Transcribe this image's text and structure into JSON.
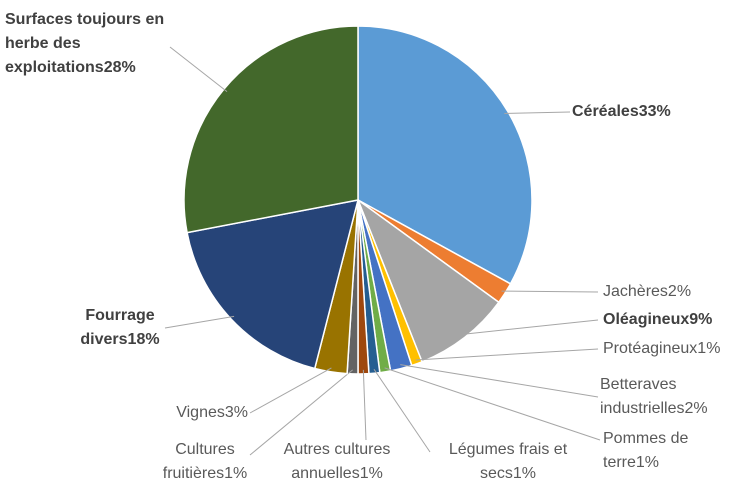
{
  "chart_data": {
    "type": "pie",
    "categories": [
      "Céréales",
      "Jachères",
      "Oléagineux",
      "Protéagineux",
      "Betteraves industrielles",
      "Pommes de terre",
      "Légumes frais et secs",
      "Autres cultures annuelles",
      "Cultures fruitières",
      "Vignes",
      "Fourrage divers",
      "Surfaces toujours en herbe des exploitations"
    ],
    "values": [
      33,
      2,
      9,
      1,
      2,
      1,
      1,
      1,
      1,
      3,
      18,
      28
    ],
    "value_labels": [
      "33%",
      "2%",
      "9%",
      "1%",
      "2%",
      "1%",
      "1%",
      "1%",
      "1%",
      "3%",
      "18%",
      "28%"
    ],
    "colors": [
      "#5b9bd5",
      "#ed7d31",
      "#a5a5a5",
      "#ffc000",
      "#4472c4",
      "#70ad47",
      "#255e91",
      "#9e480e",
      "#636363",
      "#997300",
      "#264478",
      "#43682b"
    ]
  }
}
